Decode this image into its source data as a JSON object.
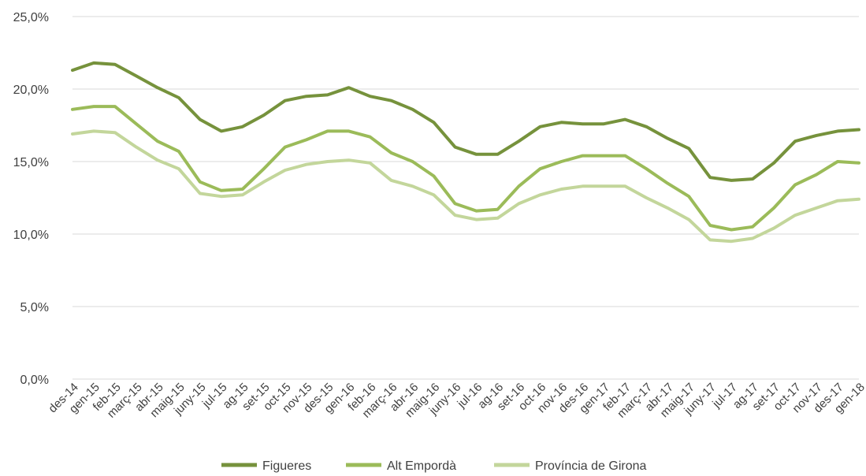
{
  "chart_data": {
    "type": "line",
    "title": "",
    "xlabel": "",
    "ylabel": "",
    "ylim": [
      0,
      25
    ],
    "y_ticks": [
      "0,0%",
      "5,0%",
      "10,0%",
      "15,0%",
      "20,0%",
      "25,0%"
    ],
    "grid": true,
    "legend_position": "bottom",
    "categories": [
      "des-14",
      "gen-15",
      "feb-15",
      "març-15",
      "abr-15",
      "maig-15",
      "juny-15",
      "jul-15",
      "ag-15",
      "set-15",
      "oct-15",
      "nov-15",
      "des-15",
      "gen-16",
      "feb-16",
      "març-16",
      "abr-16",
      "maig-16",
      "juny-16",
      "jul-16",
      "ag-16",
      "set-16",
      "oct-16",
      "nov-16",
      "des-16",
      "gen-17",
      "feb-17",
      "març-17",
      "abr-17",
      "maig-17",
      "juny-17",
      "jul-17",
      "ag-17",
      "set-17",
      "oct-17",
      "nov-17",
      "des-17",
      "gen-18"
    ],
    "series": [
      {
        "name": "Figueres",
        "color": "#76923c",
        "values": [
          21.3,
          21.8,
          21.7,
          20.9,
          20.1,
          19.4,
          17.9,
          17.1,
          17.4,
          18.2,
          19.2,
          19.5,
          19.6,
          20.1,
          19.5,
          19.2,
          18.6,
          17.7,
          16.0,
          15.5,
          15.5,
          16.4,
          17.4,
          17.7,
          17.6,
          17.6,
          17.9,
          17.4,
          16.6,
          15.9,
          13.9,
          13.7,
          13.8,
          14.9,
          16.4,
          16.8,
          17.1,
          17.2
        ]
      },
      {
        "name": "Alt Empordà",
        "color": "#9bbb59",
        "values": [
          18.6,
          18.8,
          18.8,
          17.6,
          16.4,
          15.7,
          13.6,
          13.0,
          13.1,
          14.5,
          16.0,
          16.5,
          17.1,
          17.1,
          16.7,
          15.6,
          15.0,
          14.0,
          12.1,
          11.6,
          11.7,
          13.3,
          14.5,
          15.0,
          15.4,
          15.4,
          15.4,
          14.5,
          13.5,
          12.6,
          10.6,
          10.3,
          10.5,
          11.8,
          13.4,
          14.1,
          15.0,
          14.9
        ]
      },
      {
        "name": "Província de Girona",
        "color": "#c3d69b",
        "values": [
          16.9,
          17.1,
          17.0,
          16.0,
          15.1,
          14.5,
          12.8,
          12.6,
          12.7,
          13.6,
          14.4,
          14.8,
          15.0,
          15.1,
          14.9,
          13.7,
          13.3,
          12.7,
          11.3,
          11.0,
          11.1,
          12.1,
          12.7,
          13.1,
          13.3,
          13.3,
          13.3,
          12.5,
          11.8,
          11.0,
          9.6,
          9.5,
          9.7,
          10.4,
          11.3,
          11.8,
          12.3,
          12.4
        ]
      }
    ]
  }
}
